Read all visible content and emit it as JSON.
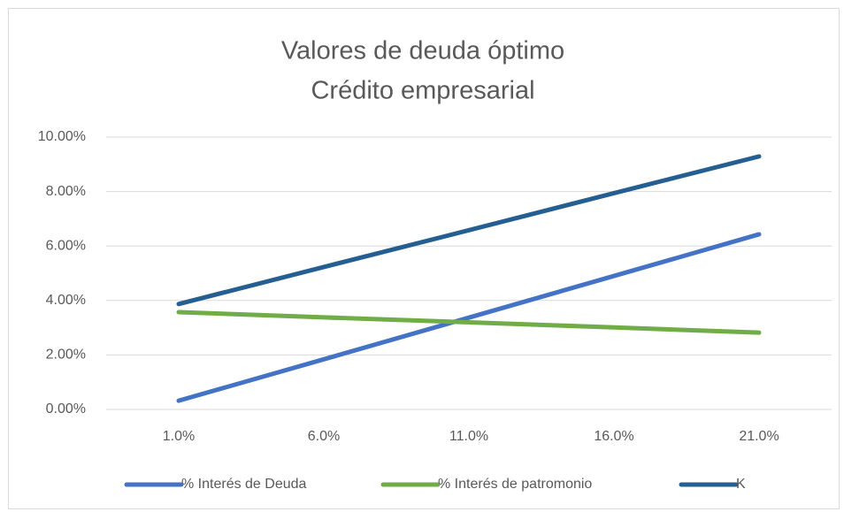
{
  "chart_data": {
    "type": "line",
    "title": "Valores de deuda óptimo",
    "subtitle": "Crédito empresarial",
    "categories": [
      "1.0%",
      "6.0%",
      "11.0%",
      "16.0%",
      "21.0%"
    ],
    "series": [
      {
        "name": "% Interés de Deuda",
        "color": "#4472c4",
        "values": [
          0.32,
          1.84,
          3.37,
          4.9,
          6.43
        ]
      },
      {
        "name": "% Interés de patromonio",
        "color": "#70ad47",
        "values": [
          3.57,
          3.38,
          3.2,
          3.01,
          2.82
        ]
      },
      {
        "name": "K",
        "color": "#255e91",
        "values": [
          3.87,
          5.23,
          6.58,
          7.94,
          9.29
        ]
      }
    ],
    "ylim": [
      0,
      10
    ],
    "yticks": [
      {
        "value": 0,
        "label": "0.00%"
      },
      {
        "value": 2,
        "label": "2.00%"
      },
      {
        "value": 4,
        "label": "4.00%"
      },
      {
        "value": 6,
        "label": "6.00%"
      },
      {
        "value": 8,
        "label": "8.00%"
      },
      {
        "value": 10,
        "label": "10.00%"
      }
    ],
    "grid": true,
    "legend": "bottom"
  }
}
